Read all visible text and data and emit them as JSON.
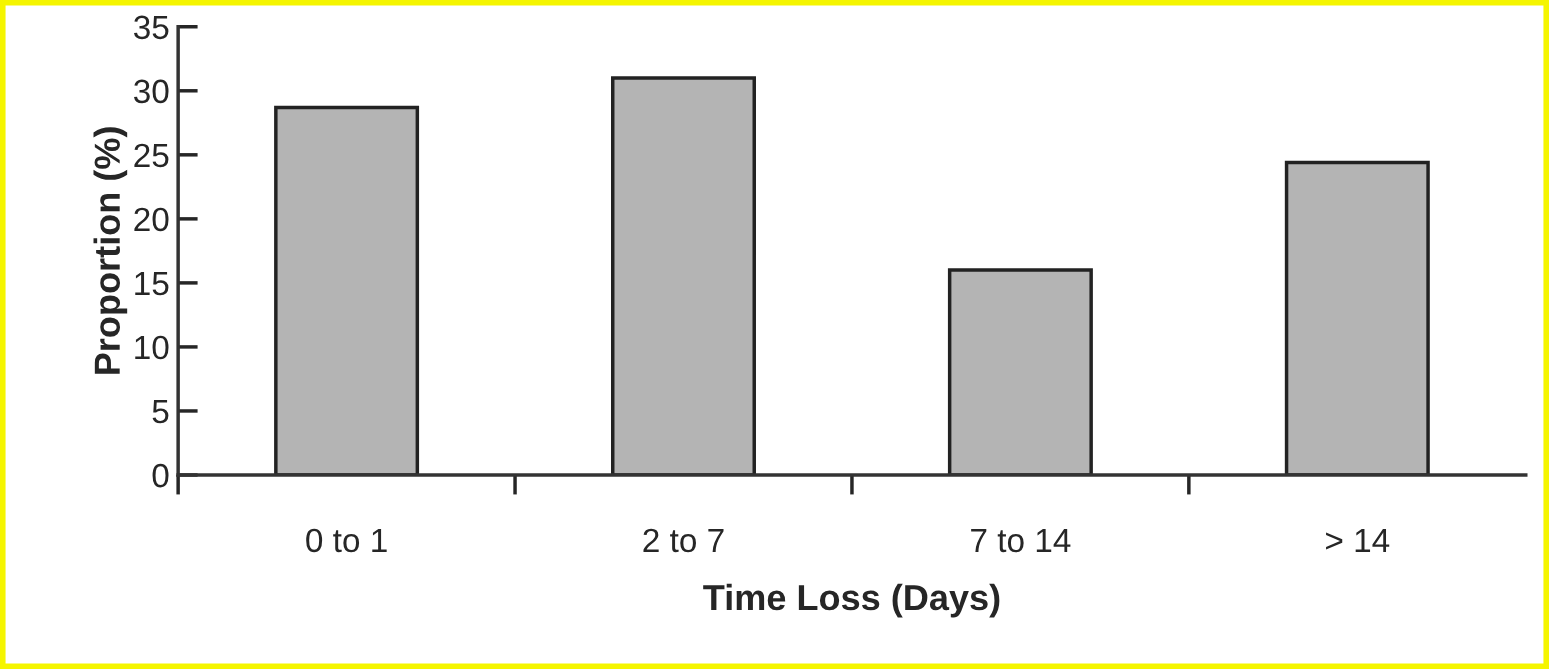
{
  "chart_data": {
    "type": "bar",
    "xlabel": "Time Loss (Days)",
    "ylabel": "Proportion (%)",
    "categories": [
      "0 to 1",
      "2 to 7",
      "7 to 14",
      "> 14"
    ],
    "values": [
      28.7,
      31.0,
      16.0,
      24.4
    ],
    "color": "#b4b4b4",
    "ylim": [
      0,
      35
    ],
    "yticks": [
      0,
      5,
      10,
      15,
      20,
      25,
      30,
      35
    ],
    "grid": false,
    "legend": false
  }
}
